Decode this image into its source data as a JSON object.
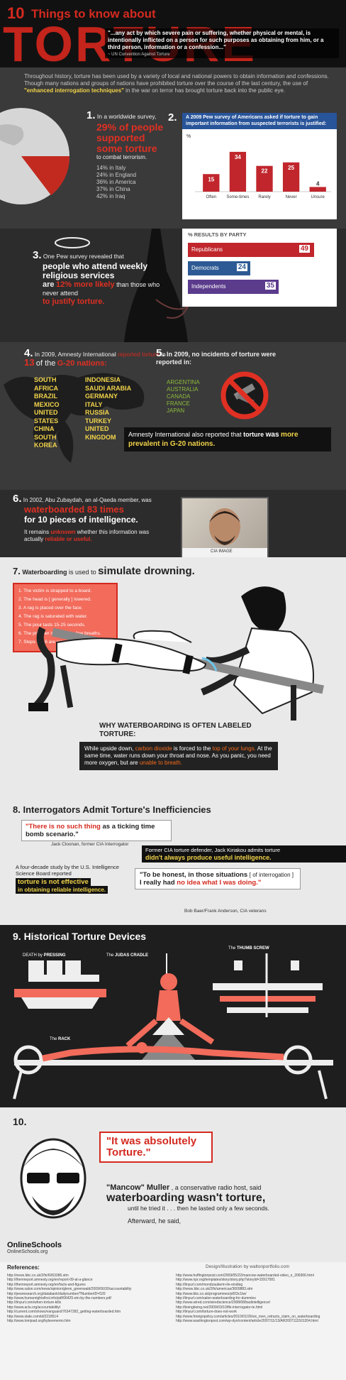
{
  "header": {
    "num": "10",
    "title_small": "Things to know about",
    "title_big": "TORTURE",
    "quote": "\"...any act by which severe pain or suffering, whether physical or mental, is intentionally inflicted on a person for such purposes as obtaining from him, or a third person, information or a confession...\"",
    "quote_source": "~ UN Convention Against Torture"
  },
  "intro": {
    "p1": "Throughout history, torture has been used by a variety of local and national powers to obtain information and confessions. Though many nations and groups of nations have prohibited torture over the course of the last century, the use of",
    "highlight": "\"enhanced interrogation techniques\"",
    "p2": "in the war on terror has brought torture back into the public eye."
  },
  "fact1": {
    "num": "1.",
    "lead": "In a worldwide survey,",
    "big": "29% of people supported some torture",
    "tail": "to combat terrorism.",
    "lines": [
      "14% in Italy",
      "24% in England",
      "36% in America",
      "37% in China",
      "42% in Iraq"
    ]
  },
  "fact2": {
    "num": "2.",
    "box_title": "A 2009 Pew survey of Americans asked if torture to gain important information from suspected terrorists is justified:",
    "pct_label": "%",
    "party_title": "% RESULTS BY PARTY",
    "parties": [
      {
        "name": "Republicans",
        "value": "49",
        "color": "#c0262c"
      },
      {
        "name": "Democrats",
        "value": "24",
        "color": "#2d5a94"
      },
      {
        "name": "Independents",
        "value": "35",
        "color": "#5b3b8c"
      }
    ]
  },
  "chart_data": {
    "type": "bar",
    "categories": [
      "Often",
      "Some-times",
      "Rarely",
      "Never",
      "Unsure"
    ],
    "values": [
      15,
      34,
      22,
      25,
      4
    ],
    "ylabel": "%"
  },
  "fact3": {
    "num": "3.",
    "lead": "One Pew survey revealed that",
    "big": "people who attend weekly religious services",
    "mid1": "are",
    "pct": "12% more likely",
    "mid2": "than those who never attend",
    "end": "to justify torture."
  },
  "fact4": {
    "num": "4.",
    "lead": "In 2009, Amnesty International",
    "reported": "reported",
    "torture": "torture",
    "in": "in",
    "count": "13",
    "of": "of the",
    "g20": "G-20 nations:",
    "col1": [
      "SOUTH",
      "AFRICA",
      "BRAZIL",
      "MEXICO",
      "UNITED",
      "STATES",
      "CHINA",
      "SOUTH",
      "KOREA"
    ],
    "col2": [
      "INDONESIA",
      "SAUDI ARABIA",
      "GERMANY",
      "ITALY",
      "RUSSIA",
      "TURKEY",
      "UNITED",
      "KINGDOM"
    ]
  },
  "fact5": {
    "num": "5.",
    "lead": "In 2009, no incidents of torture were reported in:",
    "countries": [
      "ARGENTINA",
      "AUSTRALIA",
      "CANADA",
      "FRANCE",
      "JAPAN"
    ],
    "amnesty": "Amnesty International also reported that",
    "torture": "torture",
    "was": "was",
    "prevalent": "more prevalent in G-20 nations."
  },
  "fact6": {
    "num": "6.",
    "lead": "In 2002, Abu Zubaydah, an al-Qaeda member, was",
    "big": "waterboarded 83 times",
    "tail": "for 10 pieces of intelligence.",
    "p2a": "It remains",
    "unknown": "unknown",
    "p2b": "whether this information was actually",
    "reliable": "reliable or useful.",
    "photo_caption": "CIA IMAGE"
  },
  "fact7": {
    "num": "7.",
    "bold": "Waterboarding",
    "mid": "is used to",
    "big": "simulate drowning.",
    "steps": [
      "1. The victim is strapped to a board.",
      "2. The head is [ generally ] lowered.",
      "3. A rag is placed over the face.",
      "4. The rag is saturated with water.",
      "5. The pour lasts 15-25 seconds.",
      "6. The prisoner is allowed a few breaths.",
      "7. Steps 5 & 6 are repeated indefinitely."
    ],
    "why": "WHY WATERBOARDING IS OFTEN LABELED TORTURE:",
    "expl_a": "While upside down,",
    "co2": "carbon dioxide",
    "expl_b": "is forced to the",
    "lungs": "top of your lungs.",
    "expl_c": "At the same time, water runs down your throat and nose. As you panic, you need more oxygen, but are",
    "breath": "unable to breath."
  },
  "fact8": {
    "title": "8. Interrogators Admit Torture's Inefficiencies",
    "q1a": "\"There is no such thing",
    "q1b": "as a ticking time bomb scenario.\"",
    "q1src": "Jack Cloonan, former CIA Interrogator",
    "kiriakou_a": "Former CIA torture defender, Jack Kiriakou admits torture",
    "kiriakou_b": "didn't always produce useful intelligence.",
    "study": "A four-decade study by the U.S. Intelligence Science Board reported",
    "study_b": "torture is not effective",
    "study_c": "in obtaining reliable intelligence.",
    "q2a": "\"To be honest, in those situations",
    "q2b": "[ of interrogation ]",
    "q2c": "I really had",
    "q2d": "no idea what I was doing.\"",
    "q2src": "Bob Baer/Frank Anderson, CIA veterans"
  },
  "fact9": {
    "title": "9. Historical Torture Devices",
    "death_a": "DEATH by",
    "death_b": "PRESSING",
    "judas_a": "The",
    "judas_b": "JUDAS CRADLE",
    "thumb_a": "The",
    "thumb_b": "THUMB SCREW",
    "rack_a": "The",
    "rack_b": "RACK"
  },
  "fact10": {
    "num": "10.",
    "quote": "\"It was absolutely Torture.\"",
    "name": "\"Mancow\" Muller",
    "desc": ", a conservative radio host, said",
    "big": "waterboarding wasn't torture,",
    "tail": "until he tried it . . . then he lasted only a few seconds.",
    "after": "Afterward, he said,"
  },
  "footer": {
    "logo": "OnlineSchools",
    "url": "OnlineSchools.org",
    "refs_title": "References:",
    "credit": "Design/Illustration by waltonportfolio.com",
    "refs_left": [
      "http://news.bbc.co.uk/2/hi/6063386.stm",
      "http://themreport.amnesty.org/en/report-09-at-a-glance",
      "http://themreport.amnesty.org/en/facts-and-figures",
      "http://www.salon.com/news/opinion/glenn_greenwald/2009/06/30/accountability",
      "http://pewresearch.org/databank/dailynumber/?NumberID=520",
      "http://www.humanrightsfirst.info/pdf/06425-etn-by-the-numbers.pdf",
      "http://tinyurl.com/when-torture-kills",
      "http://www.aclu.org/accountability/",
      "http://current.com/shows/vanguard/76347282_getting-waterboarded.htm",
      "http://www.slate.com/id/2218514",
      "http://www.tomjoad.org/bybeememo.htm"
    ],
    "refs_right": [
      "http://www.huffingtonpost.com/2009/05/22/mancow-waterboarded-video_n_206906.html",
      "http://www.npr.org/templates/story/story.php?storyId=15917081",
      "http://tinyurl.com/mondzauberin-ile-eindieg",
      "http://news.bbc.co.uk/2/hi/americas/3609883.stm",
      "http://www.bbc.co.uk/programmes/p003c1tw/",
      "http://tinyurl.com/salon-waterboarding-for-dummies",
      "http://www.wired.com/wiredscience/2008/08/badintelligence/",
      "http://boingboing.net/2009/03/10/fbi-interrogator-te.html",
      "http://tinyurl.com/torture-does-not-work",
      "http://www.foreignpolicy.com/articles/2010/01/26/six_men_retracts_claim_on_waterboarding",
      "http://www.washingtonpost.com/wp-dyn/content/article/2007/11/13/AR2007111501204.html"
    ]
  }
}
